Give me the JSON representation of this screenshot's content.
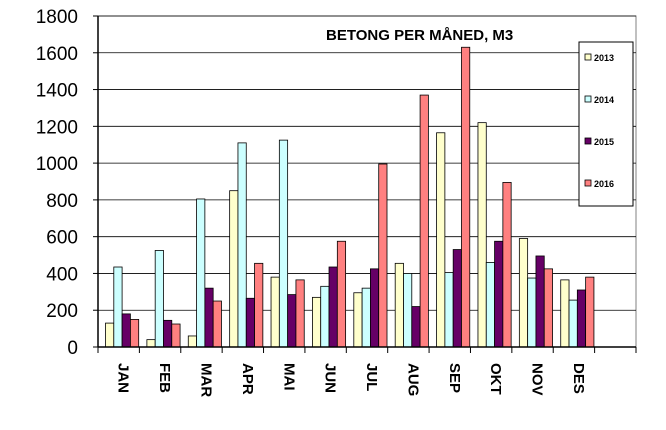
{
  "chart_data": {
    "type": "bar",
    "title": "BETONG PER MÅNED, M3",
    "xlabel": "",
    "ylabel": "",
    "ylim": [
      0,
      1800
    ],
    "yticks": [
      0,
      200,
      400,
      600,
      800,
      1000,
      1200,
      1400,
      1600,
      1800
    ],
    "categories": [
      "JAN",
      "FEB",
      "MAR",
      "APR",
      "MAI",
      "JUN",
      "JUL",
      "AUG",
      "SEP",
      "OKT",
      "NOV",
      "DES"
    ],
    "series": [
      {
        "name": "2013",
        "color": "#ffffcc",
        "values": [
          130,
          40,
          60,
          850,
          380,
          270,
          295,
          455,
          1165,
          1220,
          590,
          365
        ]
      },
      {
        "name": "2014",
        "color": "#ccffff",
        "values": [
          435,
          525,
          805,
          1110,
          1125,
          330,
          320,
          400,
          405,
          460,
          375,
          255
        ]
      },
      {
        "name": "2015",
        "color": "#660066",
        "values": [
          180,
          145,
          320,
          265,
          285,
          435,
          425,
          220,
          530,
          575,
          495,
          310
        ]
      },
      {
        "name": "2016",
        "color": "#ff8080",
        "values": [
          150,
          125,
          250,
          455,
          365,
          575,
          995,
          1370,
          1630,
          895,
          425,
          380
        ]
      }
    ],
    "grid": true,
    "legend_position": "right"
  }
}
